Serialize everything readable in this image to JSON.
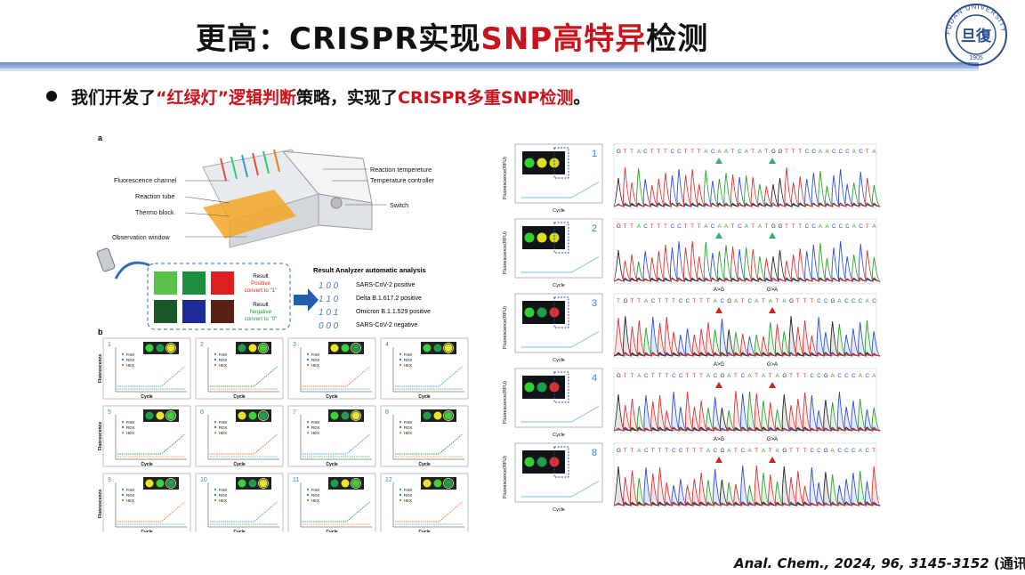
{
  "header": {
    "title_a": "更高：CRISPR实现",
    "title_b": "SNP高特异",
    "title_c": "检测"
  },
  "logo": {
    "university": "FUDAN UNIVERSITY",
    "year": "1905",
    "glyph": "旦復"
  },
  "bullet": {
    "a": "我们开发了",
    "b": "“红绿灯”逻辑判断",
    "c": "策略，实现了",
    "d": "CRISPR多重SNP检测",
    "e": "。"
  },
  "figure_a": {
    "panel_label": "a",
    "device_labels": [
      "Fluorescence channel",
      "Reaction tube",
      "Thermo block",
      "Observation window",
      "Reaction tempereture",
      "Temperature controller",
      "Switch"
    ],
    "result_positive": [
      "Result",
      "Positive",
      "convert to \"1\""
    ],
    "result_negative": [
      "Result",
      "Negative",
      "convert to \"0\""
    ],
    "analyzer_title": "Result Analyzer automatic analysis",
    "codes": [
      {
        "code": "1 0 0",
        "label": "SARS-CoV-2 positive"
      },
      {
        "code": "1 1 0",
        "label": "Delta B.1.617.2 positive"
      },
      {
        "code": "1 0 1",
        "label": "Omicron B.1.1.529 positive"
      },
      {
        "code": "0 0 0",
        "label": "SARS-CoV-2 negative"
      }
    ]
  },
  "figure_b": {
    "panel_label": "b",
    "ylabel": "Fluorescence",
    "xlabel": "Cycle",
    "legend": [
      "FAM",
      "ROX",
      "HEX"
    ],
    "panels": [
      "1",
      "2",
      "3",
      "4",
      "5",
      "6",
      "7",
      "8",
      "9",
      "10",
      "11",
      "12"
    ]
  },
  "right_figure": {
    "ylabel": "Fluorescence(RFU)",
    "xlabel": "Cycle",
    "rows": [
      {
        "num": "1",
        "seq": "GTTACTTTCCTTTACAATCATATGGTTTCCAACCCACTA",
        "mut1": "",
        "mut2": "",
        "tri": "green"
      },
      {
        "num": "2",
        "seq": "GTTACTTTCCTTTACAATCATATGGTTTCCAACCCACTA",
        "mut1": "",
        "mut2": "",
        "tri": "green"
      },
      {
        "num": "3",
        "seq": "TGTTACTTTCCTTTACGATCATATAGTTTCCGACCCAC",
        "mut1": "A>G",
        "mut2": "G>A",
        "tri": "red"
      },
      {
        "num": "4",
        "seq": "GTTACTTTCCTTTACGATCATATAGTTTCCGACCCACA",
        "mut1": "A>G",
        "mut2": "G>A",
        "tri": "red"
      },
      {
        "num": "8",
        "seq": "GTTACTTTCCTTTACGATCATATAGTTTCCGACCCACT",
        "mut1": "A>G",
        "mut2": "G>A",
        "tri": "red"
      }
    ]
  },
  "citation": {
    "italic": "Anal. Chem., 2024, 96, 3145-3152",
    "normal": " (通讯)"
  }
}
